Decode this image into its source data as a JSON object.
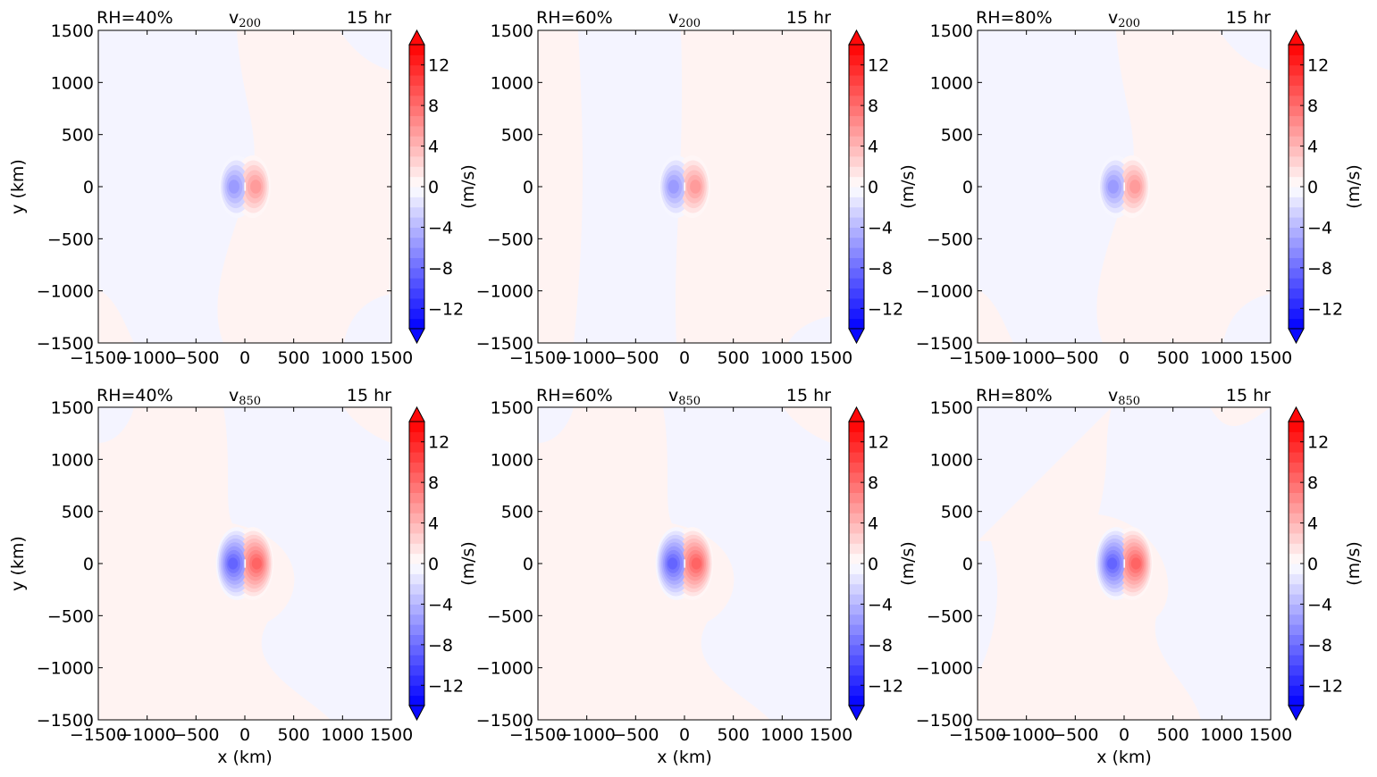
{
  "figure": {
    "tick_values": [
      -1500,
      -1000,
      -500,
      0,
      500,
      1000,
      1500
    ],
    "colorbar": {
      "label": "(m/s)",
      "ticks": [
        -12,
        -8,
        -4,
        0,
        4,
        8,
        12
      ],
      "vmin": -14,
      "vmax": 14,
      "levels": 28
    }
  },
  "chart_data": [
    {
      "type": "heatmap",
      "rh_label": "RH=40%",
      "var": "v",
      "level": "200",
      "time": "15 hr",
      "xlabel": "",
      "ylabel": "y (km)",
      "xlim": [
        -1500,
        1500
      ],
      "ylim": [
        -1500,
        1500
      ],
      "dipole_peak_ms": 6,
      "dipole_center_km": [
        -80,
        80
      ],
      "dipole_lobe_halfwidth_km": [
        250,
        280
      ],
      "background": "mostly negative near 0 (west), slightly positive near 0 (east)"
    },
    {
      "type": "heatmap",
      "rh_label": "RH=60%",
      "var": "v",
      "level": "200",
      "time": "15 hr",
      "xlabel": "",
      "ylabel": "",
      "xlim": [
        -1500,
        1500
      ],
      "ylim": [
        -1500,
        1500
      ],
      "dipole_peak_ms": 6,
      "dipole_center_km": [
        -80,
        80
      ],
      "dipole_lobe_halfwidth_km": [
        250,
        280
      ],
      "background": "slightly positive over most of domain"
    },
    {
      "type": "heatmap",
      "rh_label": "RH=80%",
      "var": "v",
      "level": "200",
      "time": "15 hr",
      "xlabel": "",
      "ylabel": "",
      "xlim": [
        -1500,
        1500
      ],
      "ylim": [
        -1500,
        1500
      ],
      "dipole_peak_ms": 6,
      "dipole_center_km": [
        -80,
        80
      ],
      "dipole_lobe_halfwidth_km": [
        250,
        280
      ],
      "background": "negative west, slightly positive east"
    },
    {
      "type": "heatmap",
      "rh_label": "RH=40%",
      "var": "v",
      "level": "850",
      "time": "15 hr",
      "xlabel": "x (km)",
      "ylabel": "y (km)",
      "xlim": [
        -1500,
        1500
      ],
      "ylim": [
        -1500,
        1500
      ],
      "dipole_peak_ms": 9,
      "dipole_center_km": [
        -80,
        80
      ],
      "dipole_lobe_halfwidth_km": [
        300,
        330
      ],
      "background": "slightly positive west, slightly negative east"
    },
    {
      "type": "heatmap",
      "rh_label": "RH=60%",
      "var": "v",
      "level": "850",
      "time": "15 hr",
      "xlabel": "x (km)",
      "ylabel": "",
      "xlim": [
        -1500,
        1500
      ],
      "ylim": [
        -1500,
        1500
      ],
      "dipole_peak_ms": 9,
      "dipole_center_km": [
        -80,
        80
      ],
      "dipole_lobe_halfwidth_km": [
        300,
        330
      ],
      "background": "slightly positive west, slightly negative east"
    },
    {
      "type": "heatmap",
      "rh_label": "RH=80%",
      "var": "v",
      "level": "850",
      "time": "15 hr",
      "xlabel": "x (km)",
      "ylabel": "",
      "xlim": [
        -1500,
        1500
      ],
      "ylim": [
        -1500,
        1500
      ],
      "dipole_peak_ms": 9,
      "dipole_center_km": [
        -80,
        80
      ],
      "dipole_lobe_halfwidth_km": [
        300,
        330
      ],
      "background": "slightly negative over most of domain"
    }
  ],
  "colors": {
    "negative_max": "#0000ff",
    "positive_max": "#ff0000",
    "zero": "#ffffff"
  }
}
